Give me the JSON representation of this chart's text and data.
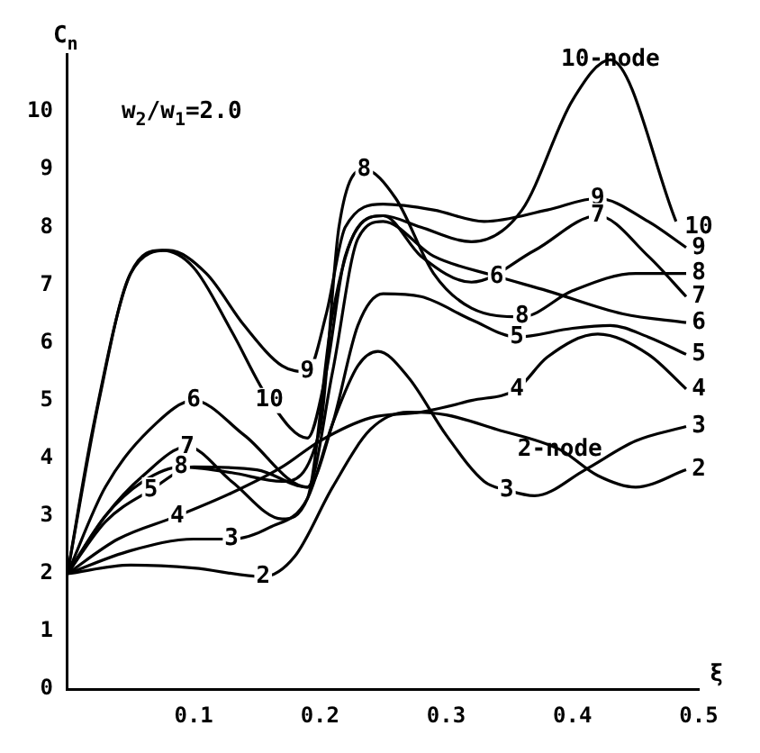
{
  "chart_data": {
    "type": "line",
    "xlabel": "ξ",
    "ylabel": "C$_{n}$",
    "xlim": [
      0,
      0.5
    ],
    "xticks": [
      0.1,
      0.2,
      0.3,
      0.4,
      0.5
    ],
    "ylim": [
      0,
      11
    ],
    "yticks": [
      0,
      1,
      2,
      3,
      4,
      5,
      6,
      7,
      8,
      9,
      10
    ],
    "grid": false,
    "legend": false,
    "marker": "none",
    "line_style": "solid",
    "series": [
      {
        "color": "#000000",
        "x": [
          0,
          0.02,
          0.05,
          0.075,
          0.1,
          0.13,
          0.16,
          0.19,
          0.205,
          0.22,
          0.25,
          0.28,
          0.32,
          0.36,
          0.4,
          0.43,
          0.482
        ],
        "values": [
          2,
          4.5,
          7.2,
          7.6,
          7.3,
          6.2,
          5.0,
          4.35,
          5.5,
          7.5,
          8.2,
          8.0,
          7.75,
          8.3,
          10.2,
          10.9,
          8.1
        ]
      },
      {
        "color": "#000000",
        "x": [
          0,
          0.025,
          0.05,
          0.08,
          0.11,
          0.14,
          0.17,
          0.19,
          0.205,
          0.22,
          0.25,
          0.29,
          0.33,
          0.38,
          0.42,
          0.46,
          0.49
        ],
        "values": [
          2,
          5.0,
          7.2,
          7.6,
          7.2,
          6.3,
          5.6,
          5.5,
          6.5,
          8.0,
          8.4,
          8.3,
          8.1,
          8.3,
          8.5,
          8.1,
          7.65
        ]
      },
      {
        "color": "#000000",
        "x": [
          0,
          0.03,
          0.06,
          0.09,
          0.13,
          0.17,
          0.2,
          0.215,
          0.235,
          0.26,
          0.29,
          0.32,
          0.36,
          0.4,
          0.45,
          0.49
        ],
        "values": [
          2,
          3.0,
          3.6,
          3.85,
          3.75,
          3.6,
          4.5,
          8.0,
          9.0,
          8.5,
          7.2,
          6.6,
          6.45,
          6.9,
          7.2,
          7.2
        ]
      },
      {
        "color": "#000000",
        "x": [
          0,
          0.03,
          0.06,
          0.095,
          0.13,
          0.17,
          0.19,
          0.21,
          0.23,
          0.25,
          0.28,
          0.32,
          0.37,
          0.42,
          0.46,
          0.49
        ],
        "values": [
          2,
          3.0,
          3.7,
          4.2,
          3.6,
          2.95,
          3.3,
          6.5,
          8.0,
          8.2,
          7.5,
          7.05,
          7.6,
          8.2,
          7.5,
          6.8
        ]
      },
      {
        "color": "#000000",
        "x": [
          0,
          0.03,
          0.07,
          0.1,
          0.14,
          0.19,
          0.21,
          0.23,
          0.25,
          0.29,
          0.34,
          0.38,
          0.44,
          0.49
        ],
        "values": [
          2,
          3.5,
          4.6,
          5.0,
          4.4,
          3.5,
          5.5,
          7.8,
          8.1,
          7.5,
          7.15,
          6.9,
          6.5,
          6.35
        ]
      },
      {
        "color": "#000000",
        "x": [
          0,
          0.03,
          0.066,
          0.1,
          0.15,
          0.19,
          0.21,
          0.23,
          0.25,
          0.28,
          0.32,
          0.356,
          0.4,
          0.43,
          0.46,
          0.49
        ],
        "values": [
          2,
          2.9,
          3.45,
          3.85,
          3.8,
          3.5,
          4.6,
          6.3,
          6.85,
          6.8,
          6.4,
          6.1,
          6.25,
          6.3,
          6.1,
          5.8
        ]
      },
      {
        "color": "#000000",
        "x": [
          0,
          0.04,
          0.087,
          0.13,
          0.17,
          0.2,
          0.24,
          0.28,
          0.32,
          0.356,
          0.38,
          0.42,
          0.46,
          0.49
        ],
        "values": [
          2,
          2.6,
          3.0,
          3.4,
          3.85,
          4.3,
          4.7,
          4.8,
          5.0,
          5.2,
          5.75,
          6.15,
          5.8,
          5.2
        ]
      },
      {
        "color": "#000000",
        "x": [
          0,
          0.05,
          0.1,
          0.13,
          0.16,
          0.19,
          0.21,
          0.23,
          0.246,
          0.27,
          0.3,
          0.33,
          0.348,
          0.37,
          0.41,
          0.45,
          0.49
        ],
        "values": [
          2,
          2.4,
          2.6,
          2.6,
          2.8,
          3.3,
          4.6,
          5.6,
          5.85,
          5.4,
          4.4,
          3.6,
          3.45,
          3.35,
          3.8,
          4.3,
          4.55
        ]
      },
      {
        "color": "#000000",
        "x": [
          0,
          0.05,
          0.1,
          0.155,
          0.18,
          0.21,
          0.24,
          0.27,
          0.3,
          0.34,
          0.39,
          0.42,
          0.45,
          0.49
        ],
        "values": [
          2,
          2.15,
          2.1,
          1.95,
          2.3,
          3.5,
          4.5,
          4.8,
          4.75,
          4.5,
          4.15,
          3.7,
          3.5,
          3.8
        ]
      }
    ],
    "annotations": [
      "w$_{2}$/w$_{1}$=2.0",
      {
        "text": "10-node",
        "x": 0.43,
        "y": 10.9
      },
      {
        "text": "9",
        "x": 0.42,
        "y": 8.5
      },
      {
        "text": "7",
        "x": 0.42,
        "y": 8.2
      },
      {
        "text": "6",
        "x": 0.34,
        "y": 7.15
      },
      {
        "text": "8",
        "x": 0.36,
        "y": 6.45
      },
      {
        "text": "5",
        "x": 0.356,
        "y": 6.1
      },
      {
        "text": "4",
        "x": 0.356,
        "y": 5.2
      },
      {
        "text": "2-node",
        "x": 0.39,
        "y": 4.15
      },
      {
        "text": "3",
        "x": 0.348,
        "y": 3.45
      },
      {
        "text": "8",
        "x": 0.235,
        "y": 9.0
      },
      {
        "text": "9",
        "x": 0.19,
        "y": 5.5
      },
      {
        "text": "10",
        "x": 0.16,
        "y": 5.0
      },
      {
        "text": "6",
        "x": 0.1,
        "y": 5.0
      },
      {
        "text": "7",
        "x": 0.095,
        "y": 4.2
      },
      {
        "text": "8",
        "x": 0.09,
        "y": 3.85
      },
      {
        "text": "5",
        "x": 0.066,
        "y": 3.45
      },
      {
        "text": "4",
        "x": 0.087,
        "y": 3.0
      },
      {
        "text": "3",
        "x": 0.13,
        "y": 2.6
      },
      {
        "text": "2",
        "x": 0.155,
        "y": 1.95
      },
      {
        "text": "10",
        "x": 0.5,
        "y": 8.0
      },
      {
        "text": "9",
        "x": 0.5,
        "y": 7.65
      },
      {
        "text": "8",
        "x": 0.5,
        "y": 7.2
      },
      {
        "text": "7",
        "x": 0.5,
        "y": 6.8
      },
      {
        "text": "6",
        "x": 0.5,
        "y": 6.35
      },
      {
        "text": "5",
        "x": 0.5,
        "y": 5.8
      },
      {
        "text": "4",
        "x": 0.5,
        "y": 5.2
      },
      {
        "text": "3",
        "x": 0.5,
        "y": 4.55
      },
      {
        "text": "2",
        "x": 0.5,
        "y": 3.8
      }
    ]
  }
}
